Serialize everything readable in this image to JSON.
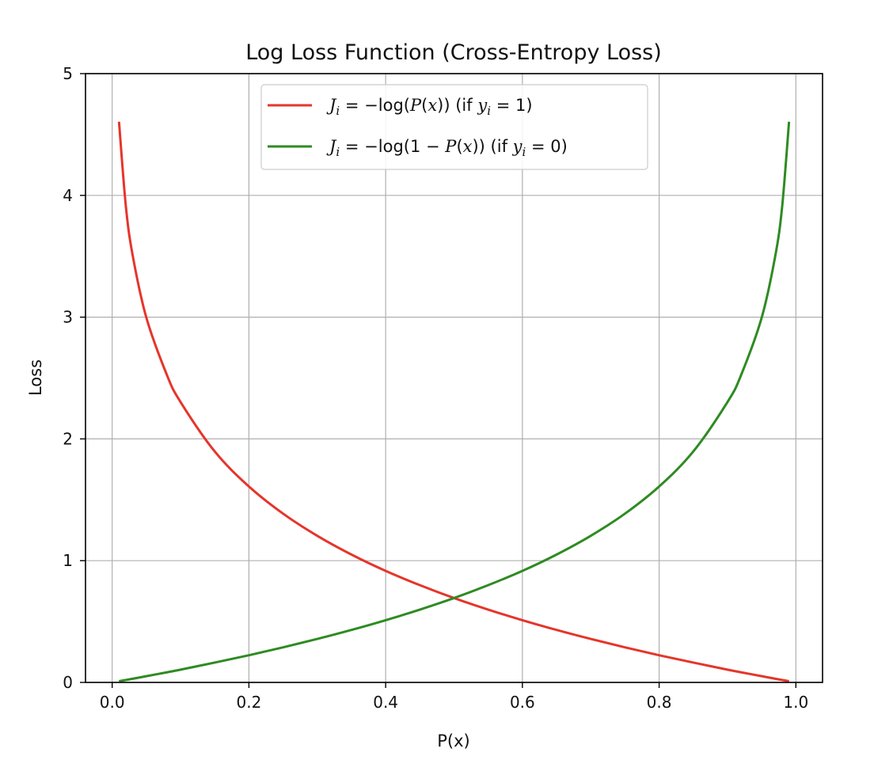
{
  "chart_data": {
    "type": "line",
    "title": "Log Loss Function (Cross-Entropy Loss)",
    "xlabel": "P(x)",
    "ylabel": "Loss",
    "xlim": [
      -0.039,
      1.039
    ],
    "ylim": [
      0,
      5
    ],
    "x_ticks": [
      0.0,
      0.2,
      0.4,
      0.6,
      0.8,
      1.0
    ],
    "x_tick_labels": [
      "0.0",
      "0.2",
      "0.4",
      "0.6",
      "0.8",
      "1.0"
    ],
    "y_ticks": [
      0,
      1,
      2,
      3,
      4,
      5
    ],
    "y_tick_labels": [
      "0",
      "1",
      "2",
      "3",
      "4",
      "5"
    ],
    "grid": true,
    "legend_position": "upper center",
    "x": [
      0.01,
      0.02,
      0.03,
      0.05,
      0.08,
      0.1,
      0.15,
      0.2,
      0.25,
      0.3,
      0.35,
      0.4,
      0.45,
      0.5,
      0.55,
      0.6,
      0.65,
      0.7,
      0.75,
      0.8,
      0.85,
      0.9,
      0.92,
      0.95,
      0.97,
      0.98,
      0.99
    ],
    "series": [
      {
        "name": "J_i = −log(P(x)) (if y_i = 1)",
        "legend_parts": [
          "J",
          "i",
          " = −log(",
          "P",
          "(",
          "x",
          ")) (if ",
          "y",
          "i",
          " = 1)"
        ],
        "color": "#e5352b",
        "values": [
          4.605,
          3.912,
          3.507,
          2.996,
          2.526,
          2.303,
          1.897,
          1.609,
          1.386,
          1.204,
          1.05,
          0.916,
          0.799,
          0.693,
          0.598,
          0.511,
          0.431,
          0.357,
          0.288,
          0.223,
          0.163,
          0.105,
          0.083,
          0.051,
          0.03,
          0.02,
          0.01
        ]
      },
      {
        "name": "J_i = −log(1 − P(x)) (if y_i = 0)",
        "legend_parts": [
          "J",
          "i",
          " = −log(1 − ",
          "P",
          "(",
          "x",
          ")) (if ",
          "y",
          "i",
          " = 0)"
        ],
        "color": "#2e8b22",
        "values": [
          0.01,
          0.02,
          0.03,
          0.051,
          0.083,
          0.105,
          0.163,
          0.223,
          0.288,
          0.357,
          0.431,
          0.511,
          0.598,
          0.693,
          0.799,
          0.916,
          1.05,
          1.204,
          1.386,
          1.609,
          1.897,
          2.303,
          2.526,
          2.996,
          3.507,
          3.912,
          4.605
        ]
      }
    ]
  }
}
